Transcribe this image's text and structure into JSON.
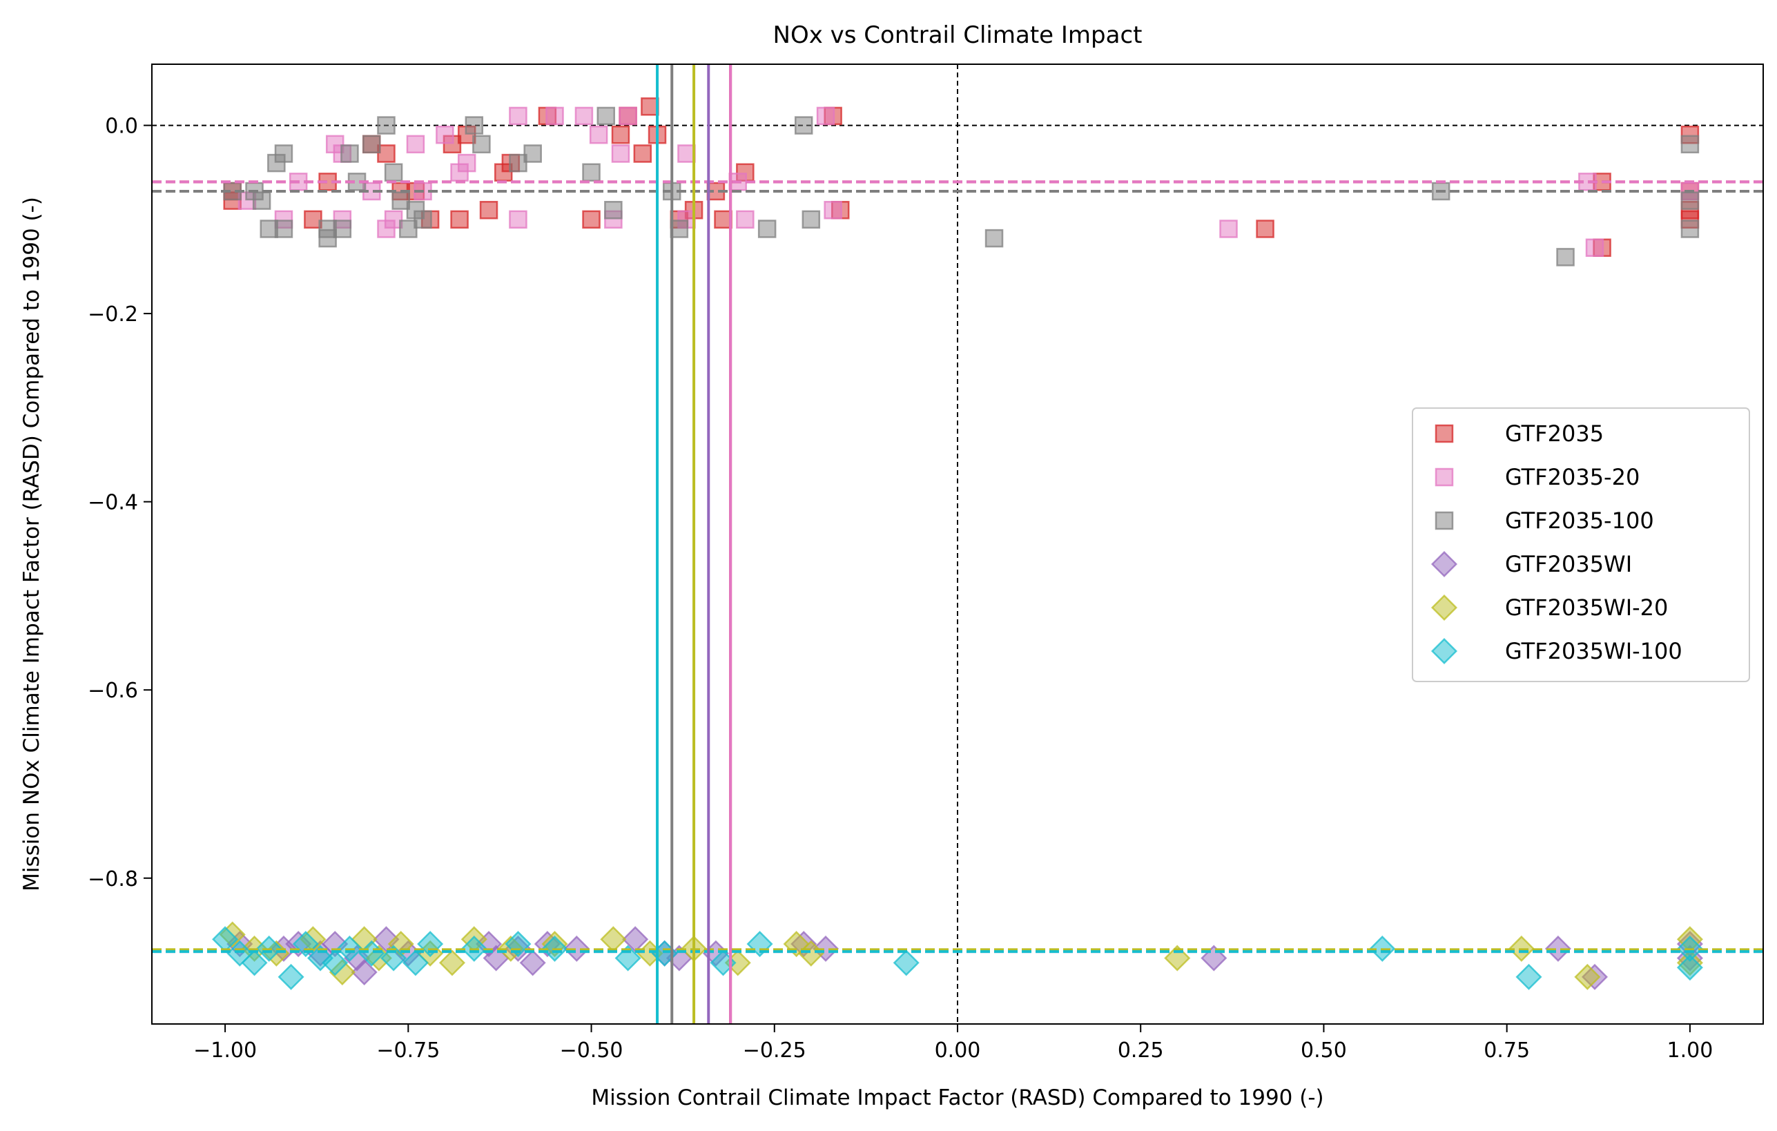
{
  "chart_data": {
    "type": "scatter",
    "title": "NOx vs Contrail Climate Impact",
    "xlabel": "Mission Contrail Climate Impact Factor (RASD) Compared to 1990 (-)",
    "ylabel": "Mission NOx Climate Impact Factor (RASD) Compared to 1990 (-)",
    "xlim": [
      -1.1,
      1.1
    ],
    "ylim": [
      -0.955,
      0.065
    ],
    "x_ticks": [
      {
        "value": -1.0,
        "label": "−1.00"
      },
      {
        "value": -0.75,
        "label": "−0.75"
      },
      {
        "value": -0.5,
        "label": "−0.50"
      },
      {
        "value": -0.25,
        "label": "−0.25"
      },
      {
        "value": 0.0,
        "label": "0.00"
      },
      {
        "value": 0.25,
        "label": "0.25"
      },
      {
        "value": 0.5,
        "label": "0.50"
      },
      {
        "value": 0.75,
        "label": "0.75"
      },
      {
        "value": 1.0,
        "label": "1.00"
      }
    ],
    "y_ticks": [
      {
        "value": 0.0,
        "label": "0.0"
      },
      {
        "value": -0.2,
        "label": "−0.2"
      },
      {
        "value": -0.4,
        "label": "−0.4"
      },
      {
        "value": -0.6,
        "label": "−0.6"
      },
      {
        "value": -0.8,
        "label": "−0.8"
      }
    ],
    "grid": false,
    "legend_position": "center-right",
    "reference_lines": [
      {
        "orientation": "horizontal",
        "value": 0.0,
        "color": "#000000",
        "style": "dashed"
      },
      {
        "orientation": "vertical",
        "value": 0.0,
        "color": "#000000",
        "style": "dashed"
      }
    ],
    "series": [
      {
        "name": "GTF2035",
        "marker": "square",
        "color": "#d62728",
        "mean_x": -0.31,
        "mean_y": -0.06,
        "points": [
          [
            -0.99,
            -0.07
          ],
          [
            -0.99,
            -0.08
          ],
          [
            -0.88,
            -0.1
          ],
          [
            -0.86,
            -0.06
          ],
          [
            -0.8,
            -0.02
          ],
          [
            -0.78,
            -0.03
          ],
          [
            -0.76,
            -0.07
          ],
          [
            -0.74,
            -0.07
          ],
          [
            -0.72,
            -0.1
          ],
          [
            -0.69,
            -0.02
          ],
          [
            -0.68,
            -0.1
          ],
          [
            -0.67,
            -0.01
          ],
          [
            -0.64,
            -0.09
          ],
          [
            -0.62,
            -0.05
          ],
          [
            -0.61,
            -0.04
          ],
          [
            -0.56,
            0.01
          ],
          [
            -0.5,
            -0.1
          ],
          [
            -0.46,
            -0.01
          ],
          [
            -0.45,
            0.01
          ],
          [
            -0.43,
            -0.03
          ],
          [
            -0.42,
            0.02
          ],
          [
            -0.41,
            -0.01
          ],
          [
            -0.38,
            -0.1
          ],
          [
            -0.36,
            -0.09
          ],
          [
            -0.33,
            -0.07
          ],
          [
            -0.32,
            -0.1
          ],
          [
            -0.29,
            -0.05
          ],
          [
            -0.17,
            0.01
          ],
          [
            -0.16,
            -0.09
          ],
          [
            0.42,
            -0.11
          ],
          [
            0.88,
            -0.06
          ],
          [
            0.88,
            -0.13
          ],
          [
            1.0,
            -0.01
          ],
          [
            1.0,
            -0.07
          ],
          [
            1.0,
            -0.09
          ],
          [
            1.0,
            -0.1
          ]
        ]
      },
      {
        "name": "GTF2035-20",
        "marker": "square",
        "color": "#e377c2",
        "mean_x": -0.31,
        "mean_y": -0.06,
        "points": [
          [
            -0.97,
            -0.08
          ],
          [
            -0.92,
            -0.1
          ],
          [
            -0.9,
            -0.06
          ],
          [
            -0.85,
            -0.02
          ],
          [
            -0.84,
            -0.03
          ],
          [
            -0.84,
            -0.1
          ],
          [
            -0.8,
            -0.07
          ],
          [
            -0.78,
            -0.11
          ],
          [
            -0.77,
            -0.1
          ],
          [
            -0.74,
            -0.02
          ],
          [
            -0.73,
            -0.07
          ],
          [
            -0.7,
            -0.01
          ],
          [
            -0.68,
            -0.05
          ],
          [
            -0.67,
            -0.04
          ],
          [
            -0.6,
            0.01
          ],
          [
            -0.6,
            -0.1
          ],
          [
            -0.55,
            0.01
          ],
          [
            -0.51,
            0.01
          ],
          [
            -0.49,
            -0.01
          ],
          [
            -0.47,
            -0.1
          ],
          [
            -0.46,
            -0.03
          ],
          [
            -0.45,
            0.01
          ],
          [
            -0.37,
            -0.03
          ],
          [
            -0.37,
            -0.1
          ],
          [
            -0.3,
            -0.06
          ],
          [
            -0.29,
            -0.1
          ],
          [
            -0.18,
            0.01
          ],
          [
            -0.17,
            -0.09
          ],
          [
            0.37,
            -0.11
          ],
          [
            0.86,
            -0.06
          ],
          [
            0.87,
            -0.13
          ],
          [
            1.0,
            -0.07
          ]
        ]
      },
      {
        "name": "GTF2035-100",
        "marker": "square",
        "color": "#7f7f7f",
        "mean_x": -0.39,
        "mean_y": -0.07,
        "points": [
          [
            -0.99,
            -0.07
          ],
          [
            -0.96,
            -0.07
          ],
          [
            -0.95,
            -0.08
          ],
          [
            -0.94,
            -0.11
          ],
          [
            -0.93,
            -0.04
          ],
          [
            -0.92,
            -0.11
          ],
          [
            -0.92,
            -0.03
          ],
          [
            -0.86,
            -0.11
          ],
          [
            -0.86,
            -0.12
          ],
          [
            -0.84,
            -0.11
          ],
          [
            -0.83,
            -0.03
          ],
          [
            -0.82,
            -0.06
          ],
          [
            -0.8,
            -0.02
          ],
          [
            -0.78,
            0.0
          ],
          [
            -0.77,
            -0.05
          ],
          [
            -0.76,
            -0.08
          ],
          [
            -0.75,
            -0.11
          ],
          [
            -0.74,
            -0.09
          ],
          [
            -0.73,
            -0.1
          ],
          [
            -0.66,
            0.0
          ],
          [
            -0.65,
            -0.02
          ],
          [
            -0.6,
            -0.04
          ],
          [
            -0.58,
            -0.03
          ],
          [
            -0.5,
            -0.05
          ],
          [
            -0.48,
            0.01
          ],
          [
            -0.47,
            -0.09
          ],
          [
            -0.39,
            -0.07
          ],
          [
            -0.38,
            -0.11
          ],
          [
            -0.26,
            -0.11
          ],
          [
            -0.21,
            0.0
          ],
          [
            -0.2,
            -0.1
          ],
          [
            0.05,
            -0.12
          ],
          [
            0.66,
            -0.07
          ],
          [
            0.83,
            -0.14
          ],
          [
            1.0,
            -0.02
          ],
          [
            1.0,
            -0.08
          ],
          [
            1.0,
            -0.11
          ]
        ]
      },
      {
        "name": "GTF2035WI",
        "marker": "diamond",
        "color": "#9467bd",
        "mean_x": -0.34,
        "mean_y": -0.878,
        "points": [
          [
            -0.98,
            -0.87
          ],
          [
            -0.92,
            -0.875
          ],
          [
            -0.9,
            -0.87
          ],
          [
            -0.87,
            -0.88
          ],
          [
            -0.85,
            -0.87
          ],
          [
            -0.82,
            -0.885
          ],
          [
            -0.81,
            -0.9
          ],
          [
            -0.78,
            -0.865
          ],
          [
            -0.75,
            -0.88
          ],
          [
            -0.64,
            -0.87
          ],
          [
            -0.63,
            -0.885
          ],
          [
            -0.6,
            -0.875
          ],
          [
            -0.58,
            -0.89
          ],
          [
            -0.56,
            -0.87
          ],
          [
            -0.52,
            -0.875
          ],
          [
            -0.44,
            -0.865
          ],
          [
            -0.4,
            -0.88
          ],
          [
            -0.38,
            -0.885
          ],
          [
            -0.33,
            -0.88
          ],
          [
            -0.21,
            -0.87
          ],
          [
            -0.18,
            -0.875
          ],
          [
            0.35,
            -0.885
          ],
          [
            0.82,
            -0.875
          ],
          [
            0.87,
            -0.905
          ],
          [
            1.0,
            -0.87
          ],
          [
            1.0,
            -0.885
          ]
        ]
      },
      {
        "name": "GTF2035WI-20",
        "marker": "diamond",
        "color": "#bcbd22",
        "mean_x": -0.36,
        "mean_y": -0.876,
        "points": [
          [
            -0.99,
            -0.86
          ],
          [
            -0.96,
            -0.875
          ],
          [
            -0.93,
            -0.88
          ],
          [
            -0.88,
            -0.865
          ],
          [
            -0.84,
            -0.9
          ],
          [
            -0.81,
            -0.865
          ],
          [
            -0.79,
            -0.885
          ],
          [
            -0.76,
            -0.87
          ],
          [
            -0.72,
            -0.88
          ],
          [
            -0.69,
            -0.89
          ],
          [
            -0.66,
            -0.865
          ],
          [
            -0.61,
            -0.875
          ],
          [
            -0.55,
            -0.87
          ],
          [
            -0.47,
            -0.865
          ],
          [
            -0.42,
            -0.88
          ],
          [
            -0.36,
            -0.875
          ],
          [
            -0.3,
            -0.89
          ],
          [
            -0.22,
            -0.87
          ],
          [
            -0.2,
            -0.88
          ],
          [
            0.3,
            -0.885
          ],
          [
            0.77,
            -0.875
          ],
          [
            0.86,
            -0.905
          ],
          [
            1.0,
            -0.865
          ],
          [
            1.0,
            -0.89
          ]
        ]
      },
      {
        "name": "GTF2035WI-100",
        "marker": "diamond",
        "color": "#17becf",
        "mean_x": -0.41,
        "mean_y": -0.878,
        "points": [
          [
            -1.0,
            -0.865
          ],
          [
            -0.98,
            -0.88
          ],
          [
            -0.96,
            -0.89
          ],
          [
            -0.94,
            -0.875
          ],
          [
            -0.91,
            -0.905
          ],
          [
            -0.89,
            -0.87
          ],
          [
            -0.87,
            -0.885
          ],
          [
            -0.85,
            -0.89
          ],
          [
            -0.83,
            -0.875
          ],
          [
            -0.8,
            -0.88
          ],
          [
            -0.77,
            -0.885
          ],
          [
            -0.74,
            -0.89
          ],
          [
            -0.72,
            -0.87
          ],
          [
            -0.66,
            -0.875
          ],
          [
            -0.6,
            -0.87
          ],
          [
            -0.55,
            -0.875
          ],
          [
            -0.45,
            -0.885
          ],
          [
            -0.4,
            -0.88
          ],
          [
            -0.32,
            -0.89
          ],
          [
            -0.27,
            -0.87
          ],
          [
            -0.07,
            -0.89
          ],
          [
            0.58,
            -0.875
          ],
          [
            0.78,
            -0.905
          ],
          [
            1.0,
            -0.875
          ],
          [
            1.0,
            -0.895
          ]
        ]
      }
    ]
  }
}
